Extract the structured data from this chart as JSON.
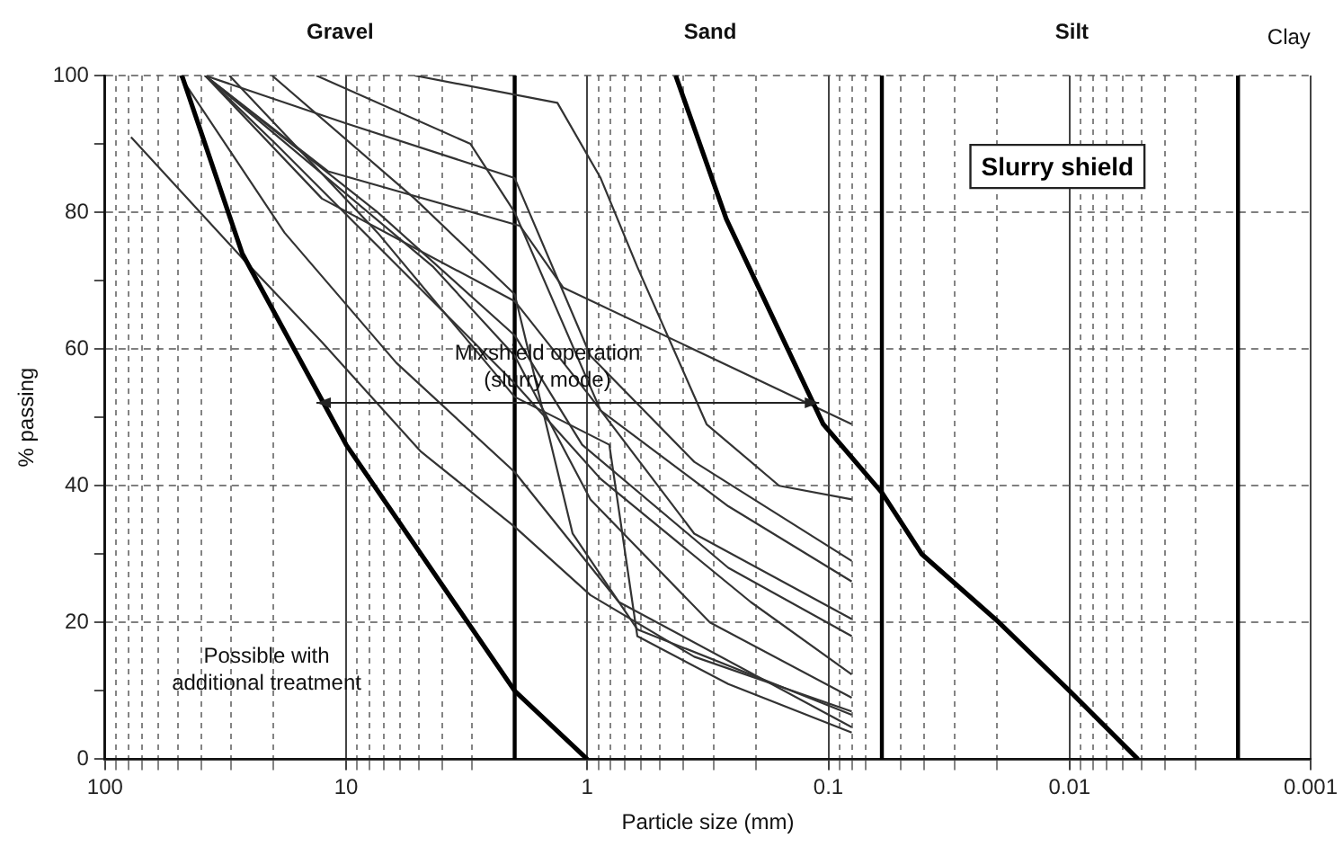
{
  "chart_data": {
    "type": "line",
    "title": "Slurry shield",
    "xlabel": "Particle size (mm)",
    "ylabel": "% passing",
    "log": "x",
    "grid": true,
    "legend": false,
    "xlim": [
      100,
      0.001
    ],
    "xticks": [
      100,
      {
        "value": 90,
        "label": null
      },
      {
        "value": 80,
        "label": null
      },
      {
        "value": 70,
        "label": null
      },
      {
        "value": 60,
        "label": null
      },
      {
        "value": 50,
        "label": null
      },
      {
        "value": 40,
        "label": null
      },
      {
        "value": 30,
        "label": null
      },
      {
        "value": 20,
        "label": null
      },
      10,
      {
        "value": 9,
        "label": null
      },
      {
        "value": 8,
        "label": null
      },
      {
        "value": 7,
        "label": null
      },
      {
        "value": 6,
        "label": null
      },
      {
        "value": 5,
        "label": null
      },
      {
        "value": 4,
        "label": null
      },
      {
        "value": 3,
        "label": null
      },
      1,
      {
        "value": 0.9,
        "label": null
      },
      {
        "value": 0.8,
        "label": null
      },
      {
        "value": 0.7,
        "label": null
      },
      {
        "value": 0.6,
        "label": null
      },
      {
        "value": 0.5,
        "label": null
      },
      {
        "value": 0.4,
        "label": null
      },
      {
        "value": 0.3,
        "label": null
      },
      {
        "value": 0.2,
        "label": null
      },
      0.1,
      {
        "value": 0.09,
        "label": null
      },
      {
        "value": 0.08,
        "label": null
      },
      {
        "value": 0.07,
        "label": null
      },
      {
        "value": 0.05,
        "label": null
      },
      {
        "value": 0.04,
        "label": null
      },
      {
        "value": 0.03,
        "label": null
      },
      {
        "value": 0.02,
        "label": null
      },
      0.01,
      {
        "value": 0.009,
        "label": null
      },
      {
        "value": 0.008,
        "label": null
      },
      {
        "value": 0.007,
        "label": null
      },
      {
        "value": 0.006,
        "label": null
      },
      {
        "value": 0.005,
        "label": null
      },
      {
        "value": 0.004,
        "label": null
      },
      {
        "value": 0.003,
        "label": null
      },
      0.001
    ],
    "ylim": [
      0,
      100
    ],
    "yticks": [
      0,
      {
        "value": 10,
        "label": null
      },
      20,
      {
        "value": 30,
        "label": null
      },
      40,
      {
        "value": 50,
        "label": null
      },
      60,
      {
        "value": 70,
        "label": null
      },
      80,
      {
        "value": 90,
        "label": null
      },
      100
    ],
    "series": [
      {
        "color": "#000000",
        "x": [
          48,
          27,
          10,
          2,
          1
        ],
        "values": [
          100,
          74,
          46,
          10,
          0
        ]
      },
      {
        "color": "#000000",
        "x": [
          0.43,
          0.265,
          0.105,
          0.06,
          0.041,
          0.0196,
          0.01,
          0.0052
        ],
        "values": [
          100,
          79,
          49,
          39,
          30,
          20,
          10,
          0
        ]
      },
      {
        "color": "#333333",
        "x": [
          78,
          26.5,
          12.6,
          4.9,
          2,
          0.97,
          0.36,
          0.08
        ],
        "values": [
          91,
          73,
          61,
          45,
          34,
          24,
          15,
          7
        ]
      },
      {
        "color": "#333333",
        "x": [
          38.5,
          11.9,
          1.9,
          1.26,
          0.08
        ],
        "values": [
          100,
          86,
          78,
          69,
          49
        ]
      },
      {
        "color": "#333333",
        "x": [
          38.5,
          12.6,
          2,
          0.97,
          0.36,
          0.08
        ],
        "values": [
          100,
          82,
          67,
          53,
          33,
          20.5
        ]
      },
      {
        "color": "#333333",
        "x": [
          38.5,
          7.4,
          2,
          1.05,
          0.26,
          0.08
        ],
        "values": [
          100,
          80,
          62,
          46,
          28,
          18
        ]
      },
      {
        "color": "#333333",
        "x": [
          38.5,
          19.6,
          2,
          0.88,
          0.21,
          0.08
        ],
        "values": [
          100,
          90,
          55,
          41,
          23,
          12.4
        ]
      },
      {
        "color": "#333333",
        "x": [
          38.5,
          4.35,
          2,
          0.97,
          0.31,
          0.08
        ],
        "values": [
          100,
          72,
          59,
          38,
          20,
          9
        ]
      },
      {
        "color": "#333333",
        "x": [
          20.3,
          5.2,
          2,
          1.15,
          0.62,
          0.08
        ],
        "values": [
          100,
          82,
          68,
          33,
          19,
          6.5
        ]
      },
      {
        "color": "#333333",
        "x": [
          49,
          18,
          6.2,
          2,
          0.74,
          0.08
        ],
        "values": [
          100,
          77,
          58,
          42,
          23,
          4.7
        ]
      },
      {
        "color": "#333333",
        "x": [
          30.5,
          7.4,
          2,
          0.81,
          0.62,
          0.26,
          0.08
        ],
        "values": [
          100,
          77,
          53,
          46,
          18,
          11,
          3.9
        ]
      },
      {
        "color": "#333333",
        "x": [
          13.3,
          3.05,
          2,
          0.88,
          0.26,
          0.08
        ],
        "values": [
          100,
          90,
          80,
          51,
          37,
          26
        ]
      },
      {
        "color": "#333333",
        "x": [
          38.5,
          10,
          2,
          0.97,
          0.36,
          0.08
        ],
        "values": [
          100,
          93,
          85,
          59,
          43.5,
          29
        ]
      },
      {
        "color": "#333333",
        "x": [
          5.2,
          1.33,
          0.88,
          0.62,
          0.32,
          0.16,
          0.08
        ],
        "values": [
          100,
          96,
          85,
          72,
          49,
          40,
          38
        ]
      }
    ],
    "ref_lines": [
      {
        "axis": "x",
        "value": 2,
        "color": "#000000"
      },
      {
        "axis": "x",
        "value": 0.06,
        "color": "#000000"
      },
      {
        "axis": "x",
        "value": 0.002,
        "color": "#000000"
      }
    ],
    "annotations": [
      "Gravel",
      "Sand",
      "Silt",
      "Clay",
      "Mixshield operation\n(slurry mode)",
      "Possible with\nadditional treatment"
    ]
  }
}
